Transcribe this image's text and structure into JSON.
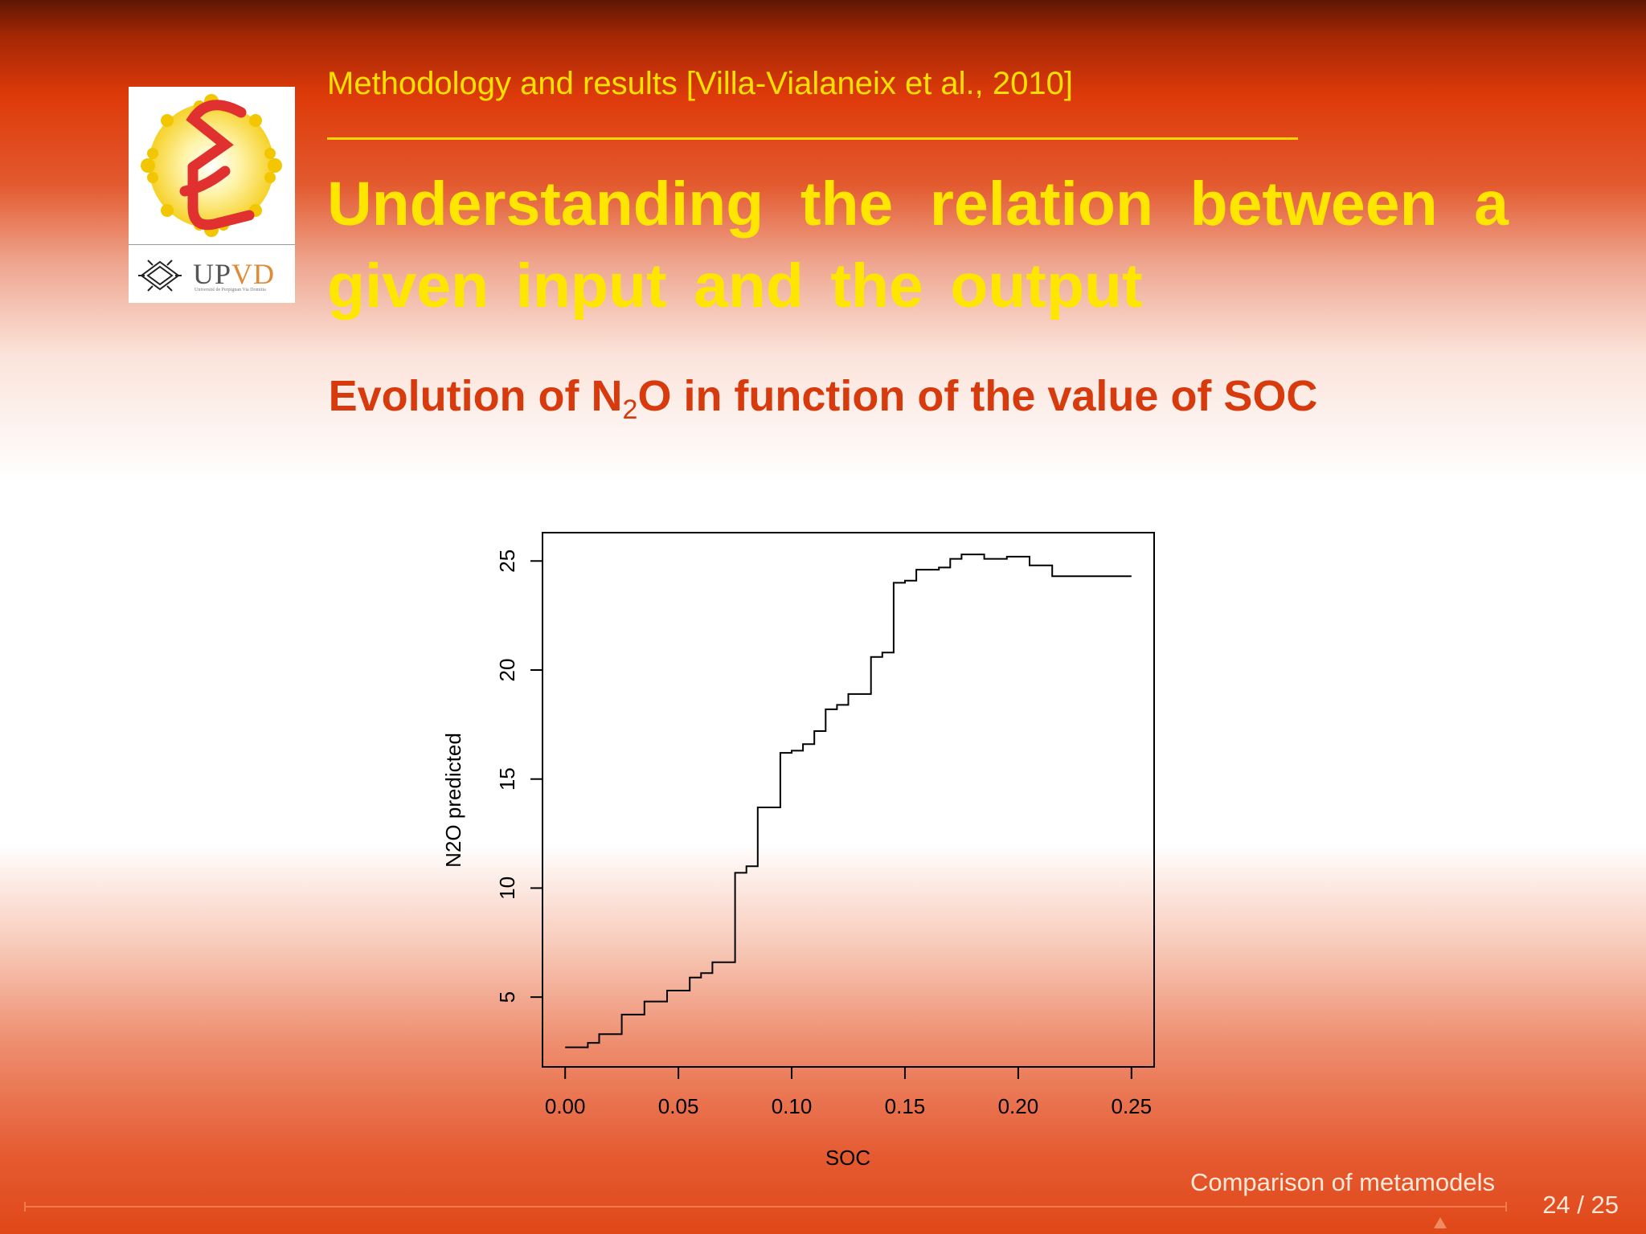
{
  "header": {
    "section": "Methodology and results [Villa-Vialaneix et al., 2010]",
    "title": "Understanding the relation between a given input and the output"
  },
  "logo": {
    "text_main": "UP",
    "text_accent": "VD",
    "text_sub": "Université de Perpignan Via Domitia"
  },
  "subtitle": {
    "before": "Evolution of N",
    "subscript": "2",
    "after": "O in function of the value of SOC"
  },
  "chart_data": {
    "type": "line",
    "step": true,
    "title": "",
    "xlabel": "SOC",
    "ylabel": "N2O predicted",
    "xlim": [
      -0.01,
      0.26
    ],
    "ylim": [
      1.8,
      26.3
    ],
    "x_ticks": [
      0,
      0.05,
      0.1,
      0.15,
      0.2,
      0.25
    ],
    "x_tick_labels": [
      "0.00",
      "0.05",
      "0.10",
      "0.15",
      "0.20",
      "0.25"
    ],
    "y_ticks": [
      5,
      10,
      15,
      20,
      25
    ],
    "y_tick_labels": [
      "5",
      "10",
      "15",
      "20",
      "25"
    ],
    "grid": false,
    "legend": "none",
    "line_color": "#000000",
    "x": [
      0.0,
      0.01,
      0.015,
      0.025,
      0.035,
      0.045,
      0.055,
      0.06,
      0.065,
      0.075,
      0.08,
      0.085,
      0.095,
      0.1,
      0.105,
      0.11,
      0.115,
      0.12,
      0.125,
      0.13,
      0.135,
      0.14,
      0.145,
      0.15,
      0.155,
      0.165,
      0.17,
      0.175,
      0.185,
      0.195,
      0.205,
      0.215,
      0.225,
      0.25
    ],
    "y": [
      2.7,
      2.9,
      3.3,
      4.2,
      4.8,
      5.3,
      5.9,
      6.1,
      6.6,
      10.7,
      11.0,
      13.7,
      16.2,
      16.3,
      16.6,
      17.2,
      18.2,
      18.4,
      18.9,
      18.9,
      20.6,
      20.8,
      24.0,
      24.1,
      24.6,
      24.7,
      25.1,
      25.3,
      25.1,
      25.2,
      24.8,
      24.3,
      24.3,
      24.3
    ]
  },
  "footer": {
    "title": "Comparison of metamodels",
    "page": "24 / 25"
  }
}
